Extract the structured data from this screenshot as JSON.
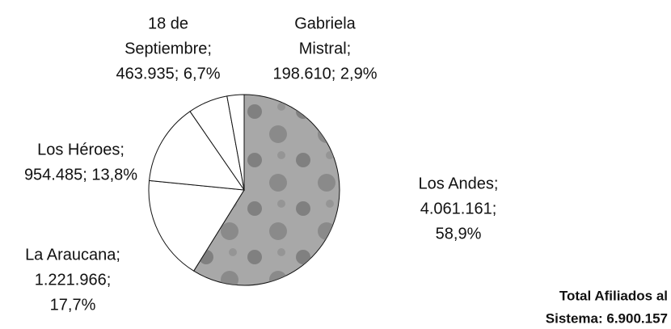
{
  "chart_data": {
    "type": "pie",
    "labels": [
      [
        "Los Andes;",
        "4.061.161;",
        "58,9%"
      ],
      [
        "La Araucana;",
        "1.221.966;",
        "17,7%"
      ],
      [
        "Los Héroes;",
        "954.485; 13,8%"
      ],
      [
        "18 de",
        "Septiembre;",
        "463.935; 6,7%"
      ],
      [
        "Gabriela",
        "Mistral;",
        "198.610; 2,9%"
      ]
    ],
    "values": [
      4061161,
      1221966,
      954485,
      463935,
      198610
    ],
    "percents": [
      58.9,
      17.7,
      13.8,
      6.7,
      2.9
    ],
    "colors": [
      "#a8a8a8",
      "#ffffff",
      "#ffffff",
      "#ffffff",
      "#ffffff"
    ],
    "annotation": [
      "Total Afiliados al",
      "Sistema: 6.900.157"
    ]
  }
}
